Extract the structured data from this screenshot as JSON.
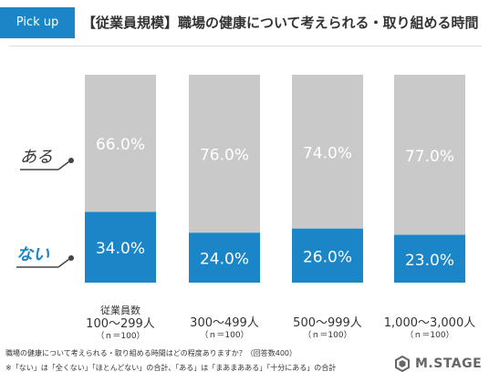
{
  "header": {
    "tag": "Pick up",
    "title": "【従業員規模】職場の健康について考えられる・取り組める時間"
  },
  "chart_data": {
    "type": "bar",
    "stacked": true,
    "percent_scale": [
      0,
      100
    ],
    "categories": [
      "100〜299人",
      "300〜499人",
      "500〜999人",
      "1,000〜3,000人"
    ],
    "category_header": "従業員数",
    "category_note": "（ｎ＝100）",
    "series": [
      {
        "name": "ない",
        "values": [
          34.0,
          24.0,
          26.0,
          23.0
        ],
        "color": "#1a86c8"
      },
      {
        "name": "ある",
        "values": [
          66.0,
          76.0,
          74.0,
          77.0
        ],
        "color": "#c9c9c9"
      }
    ],
    "value_labels": {
      "ない": [
        "34.0%",
        "24.0%",
        "26.0%",
        "23.0%"
      ],
      "ある": [
        "66.0%",
        "76.0%",
        "74.0%",
        "77.0%"
      ]
    },
    "legend_position": "left"
  },
  "footnotes": [
    "職場の健康について考えられる・取り組める時間はどの程度ありますか？（回答数400）",
    "※「ない」は「全くない」「ほとんどない」の合計、「ある」は「まあまあある」「十分にある」の合計"
  ],
  "logo": {
    "text": "M.STAGE",
    "color": "#666666"
  },
  "colors": {
    "accent": "#1a86c8",
    "gray_bar": "#c9c9c9",
    "text": "#333333"
  }
}
